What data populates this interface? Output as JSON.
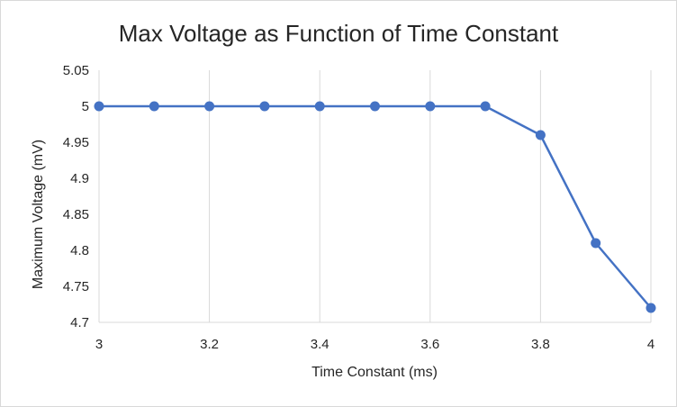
{
  "chart_data": {
    "type": "scatter",
    "title": "Max Voltage as Function of Time Constant",
    "xlabel": "Time Constant (ms)",
    "ylabel": "Maximum Voltage (mV)",
    "xlim": [
      3,
      4
    ],
    "ylim": [
      4.7,
      5.05
    ],
    "x_ticks": [
      "3",
      "3.2",
      "3.4",
      "3.6",
      "3.8",
      "4"
    ],
    "y_ticks": [
      "5.05",
      "5",
      "4.95",
      "4.9",
      "4.85",
      "4.8",
      "4.75",
      "4.7"
    ],
    "grid": "vertical",
    "legend": "none",
    "series": [
      {
        "color": "#4472c4",
        "x": [
          3.0,
          3.1,
          3.2,
          3.3,
          3.4,
          3.5,
          3.6,
          3.7,
          3.8,
          3.9,
          4.0
        ],
        "y": [
          5.0,
          5.0,
          5.0,
          5.0,
          5.0,
          5.0,
          5.0,
          5.0,
          4.96,
          4.81,
          4.72
        ]
      }
    ]
  }
}
